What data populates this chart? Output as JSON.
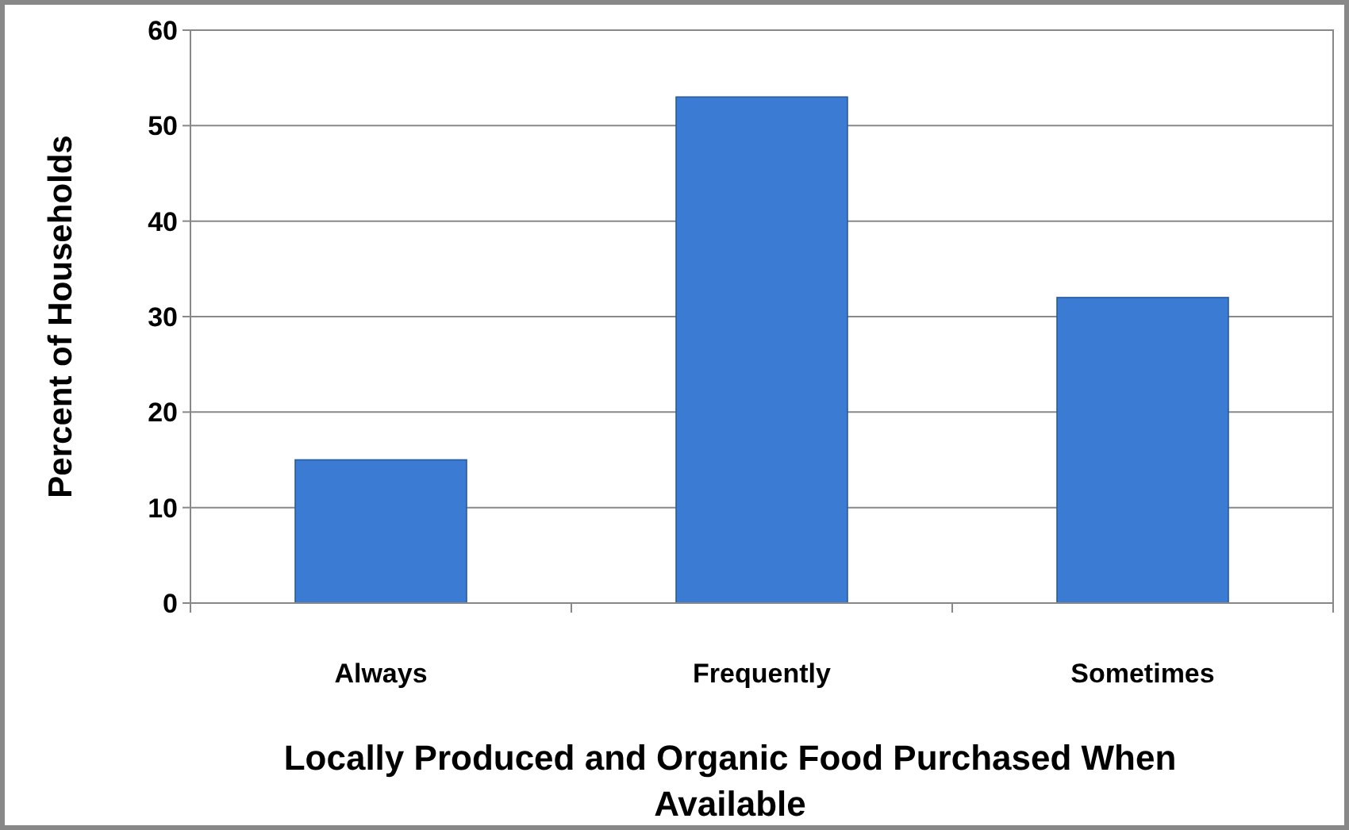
{
  "chart_data": {
    "type": "bar",
    "xlabel": "Locally Produced and Organic Food Purchased When Available",
    "ylabel": "Percent of Households",
    "categories": [
      "Always",
      "Frequently",
      "Sometimes"
    ],
    "values": [
      15,
      53,
      32
    ],
    "color": "#3b7bd4",
    "ylim": [
      0,
      60
    ],
    "yticks": [
      0,
      10,
      20,
      30,
      40,
      50,
      60
    ],
    "grid": "y"
  }
}
